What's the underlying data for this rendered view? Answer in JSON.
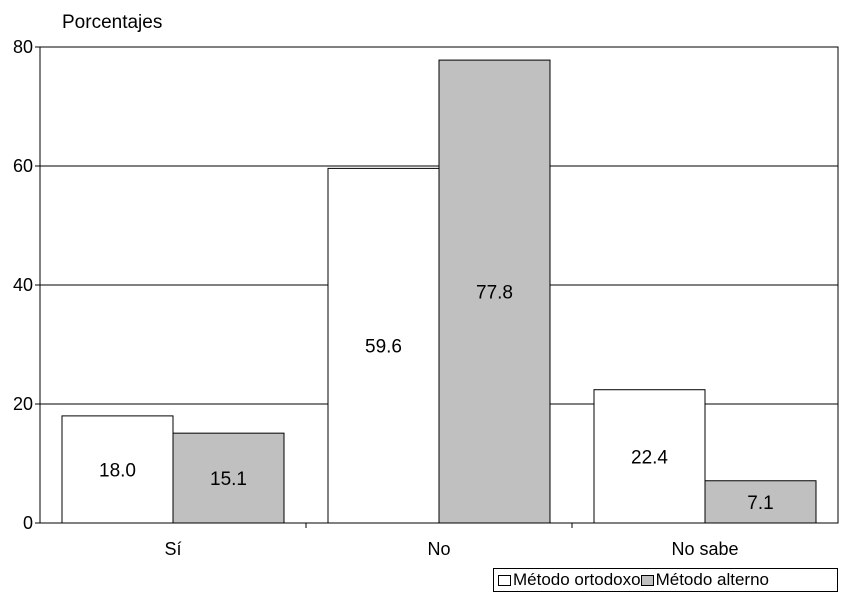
{
  "chart_data": {
    "type": "bar",
    "ylabel": "Porcentajes",
    "categories": [
      "Sí",
      "No",
      "No sabe"
    ],
    "ylim": [
      0,
      80
    ],
    "yticks": [
      0,
      20,
      40,
      60,
      80
    ],
    "grid": true,
    "legend_position": "bottom-right",
    "series": [
      {
        "name": "Método ortodoxo",
        "values": [
          18.0,
          59.6,
          22.4
        ],
        "labels": [
          "18.0",
          "59.6",
          "22.4"
        ],
        "color": "#ffffff"
      },
      {
        "name": "Método alterno",
        "values": [
          15.1,
          77.8,
          7.1
        ],
        "labels": [
          "15.1",
          "77.8",
          "7.1"
        ],
        "color": "#c0c0c0"
      }
    ]
  }
}
